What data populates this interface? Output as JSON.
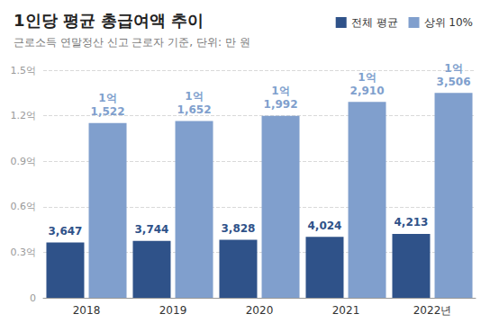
{
  "chart_data": {
    "type": "bar",
    "title": "1인당 평균 총급여액 추이",
    "subtitle": "근로소득 연말정산 신고 근로자 기준, 단위: 만 원",
    "categories": [
      "2018",
      "2019",
      "2020",
      "2021",
      "2022년"
    ],
    "series": [
      {
        "name": "전체 평균",
        "color": "#2f5289",
        "values": [
          3647,
          3744,
          3828,
          4024,
          4213
        ],
        "value_labels": [
          "3,647",
          "3,744",
          "3,828",
          "4,024",
          "4,213"
        ]
      },
      {
        "name": "상위 10%",
        "color": "#809fcd",
        "values": [
          11522,
          11652,
          11992,
          12910,
          13506
        ],
        "value_labels": [
          "1억\n1,522",
          "1억\n1,652",
          "1억\n1,992",
          "1억\n2,910",
          "1억\n3,506"
        ]
      }
    ],
    "ylim": [
      0,
      15000
    ],
    "yticks": [
      {
        "value": 0,
        "label": "0"
      },
      {
        "value": 3000,
        "label": "0.3억"
      },
      {
        "value": 6000,
        "label": "0.6억"
      },
      {
        "value": 9000,
        "label": "0.9억"
      },
      {
        "value": 12000,
        "label": "1.2억"
      },
      {
        "value": 15000,
        "label": "1.5억"
      }
    ],
    "grid": true,
    "legend": "upper right",
    "data_labels": true
  }
}
